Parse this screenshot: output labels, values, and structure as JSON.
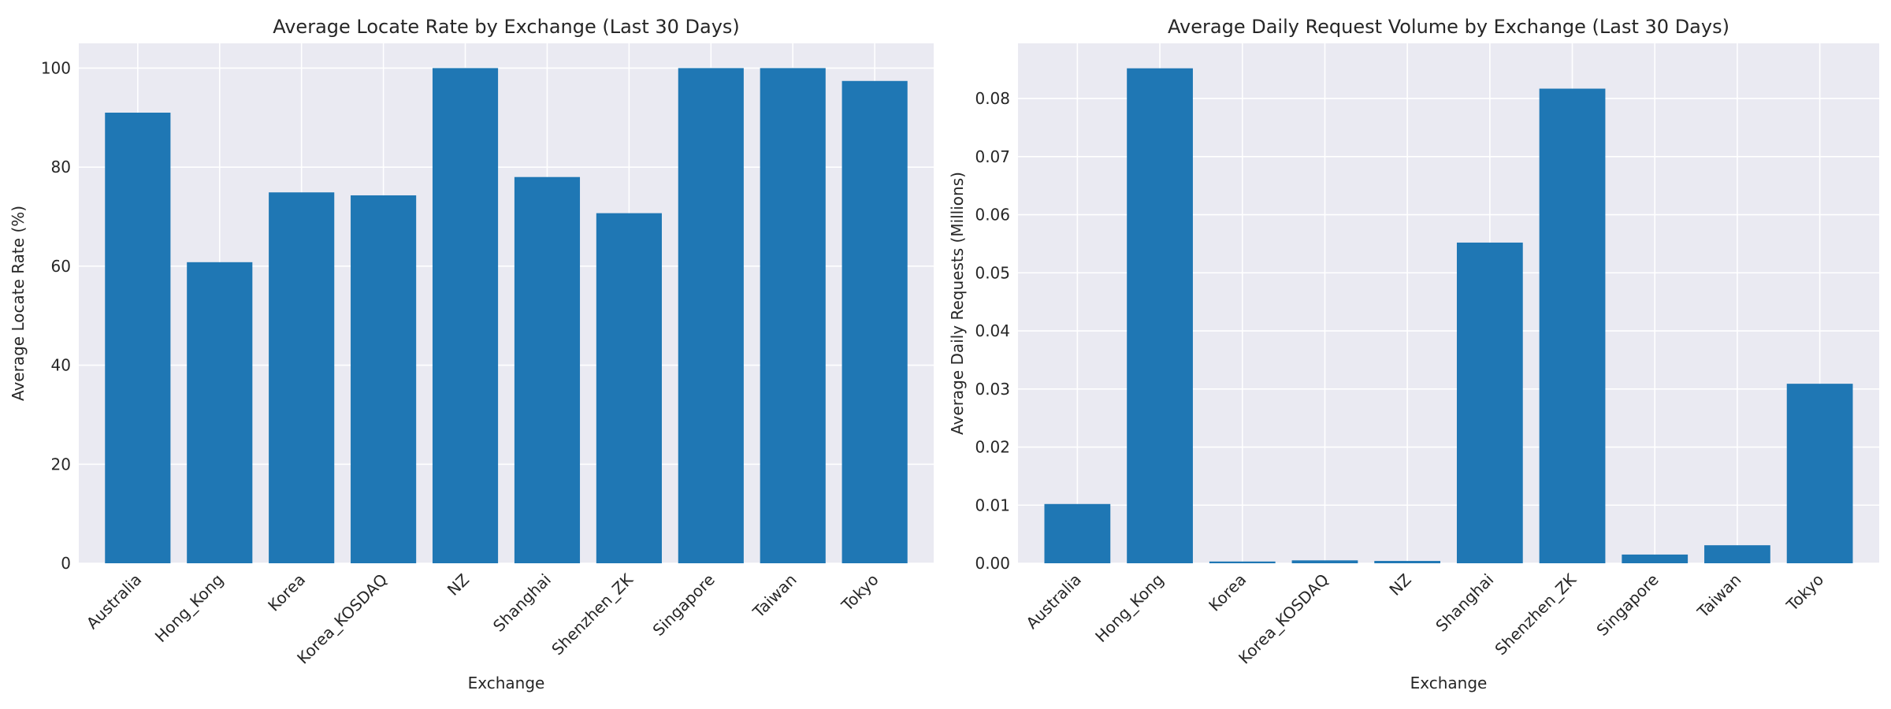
{
  "chart_data": [
    {
      "type": "bar",
      "title": "Average Locate Rate by Exchange (Last 30 Days)",
      "xlabel": "Exchange",
      "ylabel": "Average Locate Rate (%)",
      "categories": [
        "Australia",
        "Hong_Kong",
        "Korea",
        "Korea_KOSDAQ",
        "NZ",
        "Shanghai",
        "Shenzhen_ZK",
        "Singapore",
        "Taiwan",
        "Tokyo"
      ],
      "values": [
        91.0,
        60.8,
        74.9,
        74.3,
        100.0,
        78.0,
        70.7,
        100.0,
        100.0,
        97.4
      ],
      "ylim": [
        0,
        105
      ],
      "yticks": [
        0,
        20,
        40,
        60,
        80,
        100
      ],
      "ytick_labels": [
        "0",
        "20",
        "40",
        "60",
        "80",
        "100"
      ],
      "grid": true,
      "color": "#1f77b4"
    },
    {
      "type": "bar",
      "title": "Average Daily Request Volume by Exchange (Last 30 Days)",
      "xlabel": "Exchange",
      "ylabel": "Average Daily Requests (Millions)",
      "categories": [
        "Australia",
        "Hong_Kong",
        "Korea",
        "Korea_KOSDAQ",
        "NZ",
        "Shanghai",
        "Shenzhen_ZK",
        "Singapore",
        "Taiwan",
        "Tokyo"
      ],
      "values": [
        0.0102,
        0.0852,
        0.0003,
        0.0005,
        0.0004,
        0.0552,
        0.0817,
        0.0015,
        0.0031,
        0.0309
      ],
      "ylim": [
        0,
        0.0895
      ],
      "yticks": [
        0,
        0.01,
        0.02,
        0.03,
        0.04,
        0.05,
        0.06,
        0.07,
        0.08
      ],
      "ytick_labels": [
        "0.00",
        "0.01",
        "0.02",
        "0.03",
        "0.04",
        "0.05",
        "0.06",
        "0.07",
        "0.08"
      ],
      "grid": true,
      "color": "#1f77b4"
    }
  ]
}
